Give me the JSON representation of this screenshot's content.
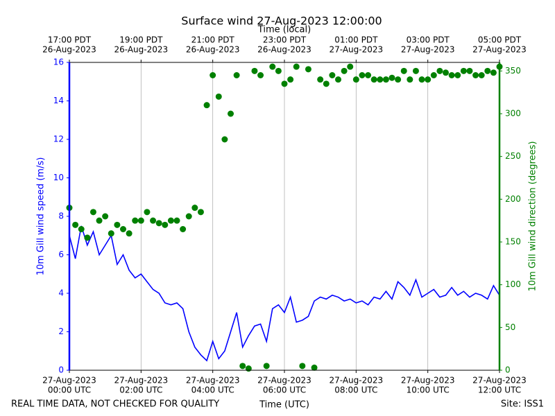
{
  "chart_data": {
    "type": "line",
    "title": "Surface wind 27-Aug-2023 12:00:00",
    "x_label": "Time (UTC)",
    "x2_label": "Time (local)",
    "y_label": "10m Gill wind speed (m/s)",
    "y2_label": "10m Gill wind direction (degrees)",
    "footer_left": "REAL TIME DATA, NOT CHECKED FOR QUALITY",
    "footer_right": "Site: ISS1",
    "grid": true,
    "xlim": [
      "2023-08-27T00:00",
      "2023-08-27T12:00"
    ],
    "xticks": [
      {
        "value": "2023-08-27T00:00",
        "label": [
          "27-Aug-2023",
          "00:00 UTC"
        ]
      },
      {
        "value": "2023-08-27T02:00",
        "label": [
          "27-Aug-2023",
          "02:00 UTC"
        ]
      },
      {
        "value": "2023-08-27T04:00",
        "label": [
          "27-Aug-2023",
          "04:00 UTC"
        ]
      },
      {
        "value": "2023-08-27T06:00",
        "label": [
          "27-Aug-2023",
          "06:00 UTC"
        ]
      },
      {
        "value": "2023-08-27T08:00",
        "label": [
          "27-Aug-2023",
          "08:00 UTC"
        ]
      },
      {
        "value": "2023-08-27T10:00",
        "label": [
          "27-Aug-2023",
          "10:00 UTC"
        ]
      },
      {
        "value": "2023-08-27T12:00",
        "label": [
          "27-Aug-2023",
          "12:00 UTC"
        ]
      }
    ],
    "x2ticks": [
      {
        "value": "2023-08-27T00:00",
        "label": [
          "17:00 PDT",
          "26-Aug-2023"
        ]
      },
      {
        "value": "2023-08-27T02:00",
        "label": [
          "19:00 PDT",
          "26-Aug-2023"
        ]
      },
      {
        "value": "2023-08-27T04:00",
        "label": [
          "21:00 PDT",
          "26-Aug-2023"
        ]
      },
      {
        "value": "2023-08-27T06:00",
        "label": [
          "23:00 PDT",
          "26-Aug-2023"
        ]
      },
      {
        "value": "2023-08-27T08:00",
        "label": [
          "01:00 PDT",
          "27-Aug-2023"
        ]
      },
      {
        "value": "2023-08-27T10:00",
        "label": [
          "03:00 PDT",
          "27-Aug-2023"
        ]
      },
      {
        "value": "2023-08-27T12:00",
        "label": [
          "05:00 PDT",
          "27-Aug-2023"
        ]
      }
    ],
    "ylim": [
      0,
      16
    ],
    "yticks": [
      0,
      2,
      4,
      6,
      8,
      10,
      12,
      14,
      16
    ],
    "y2lim": [
      0,
      360
    ],
    "y2ticks": [
      0,
      50,
      100,
      150,
      200,
      250,
      300,
      350
    ],
    "x": [
      "2023-08-27T00:00",
      "2023-08-27T00:10",
      "2023-08-27T00:20",
      "2023-08-27T00:30",
      "2023-08-27T00:40",
      "2023-08-27T00:50",
      "2023-08-27T01:00",
      "2023-08-27T01:10",
      "2023-08-27T01:20",
      "2023-08-27T01:30",
      "2023-08-27T01:40",
      "2023-08-27T01:50",
      "2023-08-27T02:00",
      "2023-08-27T02:10",
      "2023-08-27T02:20",
      "2023-08-27T02:30",
      "2023-08-27T02:40",
      "2023-08-27T02:50",
      "2023-08-27T03:00",
      "2023-08-27T03:10",
      "2023-08-27T03:20",
      "2023-08-27T03:30",
      "2023-08-27T03:40",
      "2023-08-27T03:50",
      "2023-08-27T04:00",
      "2023-08-27T04:10",
      "2023-08-27T04:20",
      "2023-08-27T04:30",
      "2023-08-27T04:40",
      "2023-08-27T04:50",
      "2023-08-27T05:00",
      "2023-08-27T05:10",
      "2023-08-27T05:20",
      "2023-08-27T05:30",
      "2023-08-27T05:40",
      "2023-08-27T05:50",
      "2023-08-27T06:00",
      "2023-08-27T06:10",
      "2023-08-27T06:20",
      "2023-08-27T06:30",
      "2023-08-27T06:40",
      "2023-08-27T06:50",
      "2023-08-27T07:00",
      "2023-08-27T07:10",
      "2023-08-27T07:20",
      "2023-08-27T07:30",
      "2023-08-27T07:40",
      "2023-08-27T07:50",
      "2023-08-27T08:00",
      "2023-08-27T08:10",
      "2023-08-27T08:20",
      "2023-08-27T08:30",
      "2023-08-27T08:40",
      "2023-08-27T08:50",
      "2023-08-27T09:00",
      "2023-08-27T09:10",
      "2023-08-27T09:20",
      "2023-08-27T09:30",
      "2023-08-27T09:40",
      "2023-08-27T09:50",
      "2023-08-27T10:00",
      "2023-08-27T10:10",
      "2023-08-27T10:20",
      "2023-08-27T10:30",
      "2023-08-27T10:40",
      "2023-08-27T10:50",
      "2023-08-27T11:00",
      "2023-08-27T11:10",
      "2023-08-27T11:20",
      "2023-08-27T11:30",
      "2023-08-27T11:40",
      "2023-08-27T11:50",
      "2023-08-27T12:00"
    ],
    "series": [
      {
        "type": "line",
        "color": "#0000ff",
        "axis": "y",
        "values": [
          7.0,
          5.8,
          7.5,
          6.5,
          7.2,
          6.0,
          6.5,
          7.0,
          5.5,
          6.0,
          5.2,
          4.8,
          5.0,
          4.6,
          4.2,
          4.0,
          3.5,
          3.4,
          3.5,
          3.2,
          2.0,
          1.2,
          0.8,
          0.5,
          1.5,
          0.6,
          1.0,
          2.0,
          3.0,
          1.2,
          1.8,
          2.3,
          2.4,
          1.5,
          3.2,
          3.4,
          3.0,
          3.8,
          2.5,
          2.6,
          2.8,
          3.6,
          3.8,
          3.7,
          3.9,
          3.8,
          3.6,
          3.7,
          3.5,
          3.6,
          3.4,
          3.8,
          3.7,
          4.1,
          3.7,
          4.6,
          4.3,
          3.9,
          4.7,
          3.8,
          4.0,
          4.2,
          3.8,
          3.9,
          4.3,
          3.9,
          4.1,
          3.8,
          4.0,
          3.9,
          3.7,
          4.4,
          3.9
        ]
      },
      {
        "type": "scatter",
        "color": "#008000",
        "axis": "y2",
        "values": [
          190,
          170,
          165,
          155,
          185,
          175,
          180,
          160,
          170,
          165,
          160,
          175,
          175,
          185,
          175,
          172,
          170,
          175,
          175,
          165,
          180,
          190,
          185,
          310,
          345,
          320,
          270,
          300,
          345,
          5,
          2,
          350,
          345,
          5,
          355,
          350,
          335,
          340,
          355,
          5,
          352,
          3,
          340,
          335,
          345,
          340,
          350,
          355,
          340,
          345,
          345,
          340,
          340,
          340,
          342,
          340,
          350,
          340,
          350,
          340,
          340,
          345,
          350,
          348,
          345,
          345,
          350,
          350,
          345,
          345,
          350,
          348,
          355
        ]
      }
    ]
  }
}
